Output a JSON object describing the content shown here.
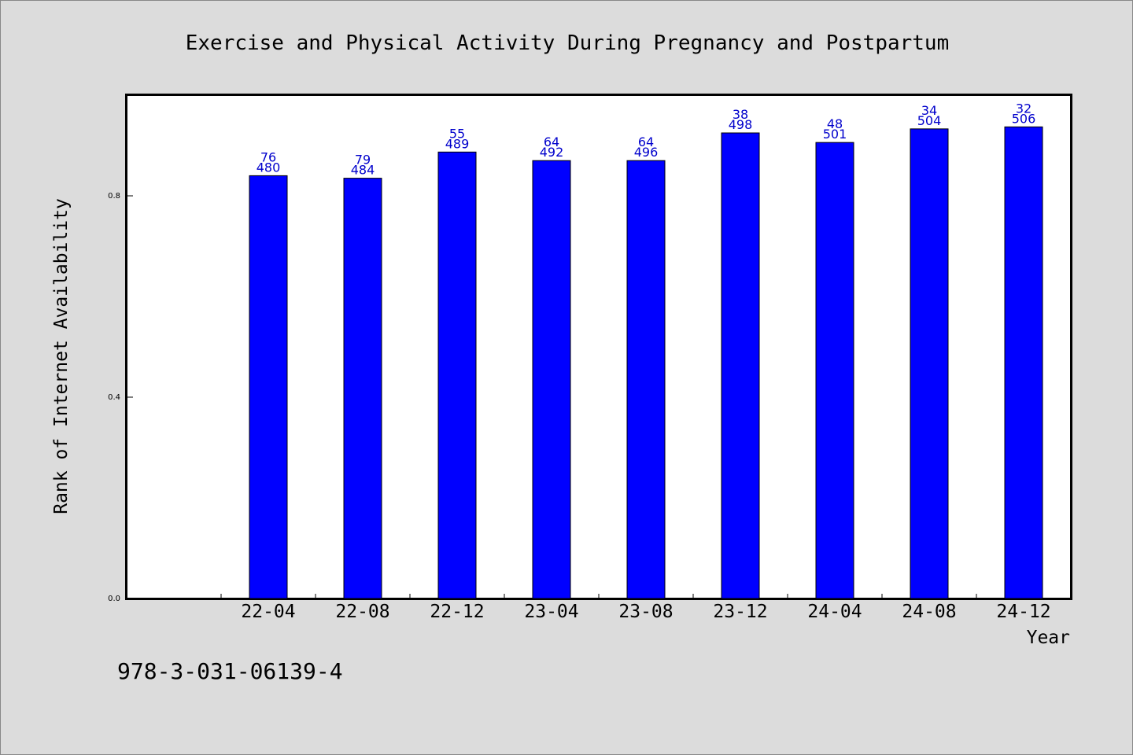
{
  "footer": {
    "code": "978-3-031-06139-4"
  },
  "colors": {
    "background": "#dcdcdc",
    "plot_background": "#ffffff",
    "bar": "#0000ff",
    "bar_outline": "#000000",
    "label": "#0000cc"
  },
  "chart_data": {
    "type": "bar",
    "title": "Exercise and Physical Activity During Pregnancy and Postpartum",
    "xlabel": "Year",
    "ylabel": "Rank of Internet Availability",
    "categories": [
      "22-04",
      "22-08",
      "22-12",
      "23-04",
      "23-08",
      "23-12",
      "24-04",
      "24-08",
      "24-12"
    ],
    "values": [
      0.84,
      0.835,
      0.887,
      0.87,
      0.87,
      0.925,
      0.906,
      0.933,
      0.937
    ],
    "label_top": [
      "76",
      "79",
      "55",
      "64",
      "64",
      "38",
      "48",
      "34",
      "32"
    ],
    "label_bottom": [
      "480",
      "484",
      "489",
      "492",
      "496",
      "498",
      "501",
      "504",
      "506"
    ],
    "ylim": [
      0,
      1.0
    ],
    "yticks": [
      0.0,
      0.4,
      0.8
    ],
    "ytick_labels": [
      "0.0",
      "0.4",
      "0.8"
    ],
    "grid": false,
    "legend": "none"
  }
}
